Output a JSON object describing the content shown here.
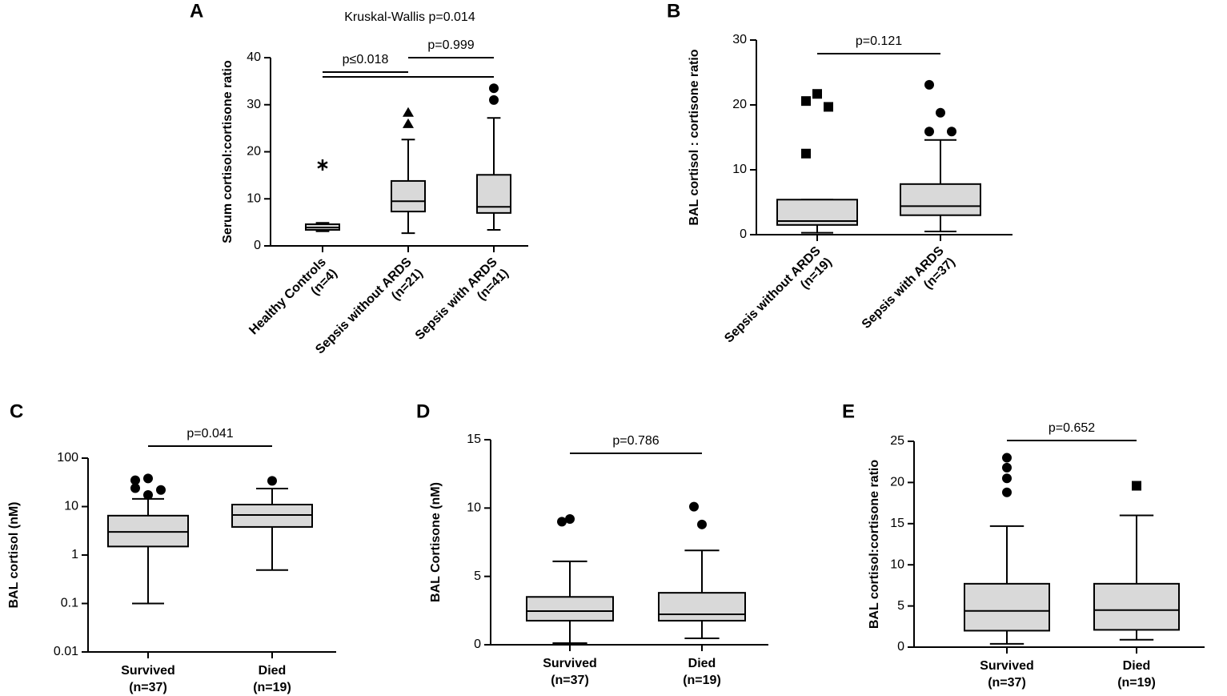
{
  "chart_data": [
    {
      "type": "box",
      "label": "A",
      "title": "Kruskal-Wallis p=0.014",
      "ylabel": "Serum cortisol:cortisone ratio",
      "categories": [
        "Healthy Controls",
        "Sepsis without ARDS",
        "Sepsis with ARDS"
      ],
      "category_notes": [
        "(n=4)",
        "(n=21)",
        "(n=41)"
      ],
      "ylim": [
        0,
        40
      ],
      "yticks": [
        0,
        10,
        20,
        30,
        40
      ],
      "log": false,
      "boxes": [
        {
          "whisker_low": 3.1,
          "q1": 3.4,
          "median": 3.9,
          "q3": 4.6,
          "whisker_high": 4.9,
          "outliers": [
            17.2
          ],
          "marker": "star"
        },
        {
          "whisker_low": 2.7,
          "q1": 7.3,
          "median": 9.5,
          "q3": 13.8,
          "whisker_high": 22.6,
          "outliers": [
            28.3,
            25.9
          ],
          "marker": "triangle"
        },
        {
          "whisker_low": 3.4,
          "q1": 7.0,
          "median": 8.3,
          "q3": 15.1,
          "whisker_high": 27.2,
          "outliers": [
            33.5,
            31.0
          ],
          "marker": "circle"
        }
      ],
      "annotations": [
        {
          "text": "p≤0.018",
          "pairs": [
            [
              0,
              1
            ],
            [
              0,
              2
            ]
          ]
        },
        {
          "text": "p=0.999",
          "pairs": [
            [
              1,
              2
            ]
          ]
        }
      ]
    },
    {
      "type": "box",
      "label": "B",
      "ylabel": "BAL cortisol : cortisone ratio",
      "categories": [
        "Sepsis without ARDS",
        "Sepsis with ARDS"
      ],
      "category_notes": [
        "(n=19)",
        "(n=37)"
      ],
      "ylim": [
        0,
        30
      ],
      "yticks": [
        0,
        10,
        20,
        30
      ],
      "log": false,
      "boxes": [
        {
          "whisker_low": 0.3,
          "q1": 1.5,
          "median": 2.1,
          "q3": 5.4,
          "whisker_high": 5.4,
          "outliers": [
            20.6,
            21.7,
            19.7,
            12.5
          ],
          "marker": "square"
        },
        {
          "whisker_low": 0.5,
          "q1": 3.0,
          "median": 4.4,
          "q3": 7.8,
          "whisker_high": 14.6,
          "outliers": [
            23.1,
            18.8,
            15.9,
            15.9
          ],
          "marker": "circle"
        }
      ],
      "annotations": [
        {
          "text": "p=0.121",
          "pairs": [
            [
              0,
              1
            ]
          ]
        }
      ]
    },
    {
      "type": "box",
      "label": "C",
      "ylabel": "BAL cortisol (nM)",
      "categories": [
        "Survived",
        "Died"
      ],
      "category_notes": [
        "(n=37)",
        "(n=19)"
      ],
      "ylim": [
        0.01,
        100
      ],
      "yticks": [
        0.01,
        0.1,
        1,
        10,
        100
      ],
      "log": true,
      "boxes": [
        {
          "whisker_low": 0.1,
          "q1": 1.5,
          "median": 3.0,
          "q3": 6.5,
          "whisker_high": 14.4,
          "outliers": [
            35,
            38,
            22,
            24,
            17.4
          ],
          "marker": "circle"
        },
        {
          "whisker_low": 0.49,
          "q1": 3.8,
          "median": 6.7,
          "q3": 11,
          "whisker_high": 23.5,
          "outliers": [
            34
          ],
          "marker": "circle"
        }
      ],
      "annotations": [
        {
          "text": "p=0.041",
          "pairs": [
            [
              0,
              1
            ]
          ]
        }
      ]
    },
    {
      "type": "box",
      "label": "D",
      "ylabel": "BAL Cortisone (nM)",
      "categories": [
        "Survived",
        "Died"
      ],
      "category_notes": [
        "(n=37)",
        "(n=19)"
      ],
      "ylim": [
        0,
        15
      ],
      "yticks": [
        0,
        5,
        10,
        15
      ],
      "log": false,
      "boxes": [
        {
          "whisker_low": 0.12,
          "q1": 1.76,
          "median": 2.46,
          "q3": 3.5,
          "whisker_high": 6.1,
          "outliers": [
            9.0,
            9.2
          ],
          "marker": "circle"
        },
        {
          "whisker_low": 0.47,
          "q1": 1.76,
          "median": 2.23,
          "q3": 3.8,
          "whisker_high": 6.9,
          "outliers": [
            10.1,
            8.8
          ],
          "marker": "circle"
        }
      ],
      "annotations": [
        {
          "text": "p=0.786",
          "pairs": [
            [
              0,
              1
            ]
          ]
        }
      ]
    },
    {
      "type": "box",
      "label": "E",
      "ylabel": "BAL cortisol:cortisone ratio",
      "categories": [
        "Survived",
        "Died"
      ],
      "category_notes": [
        "(n=37)",
        "(n=19)"
      ],
      "ylim": [
        0,
        25
      ],
      "yticks": [
        0,
        5,
        10,
        15,
        20,
        25
      ],
      "log": false,
      "boxes": [
        {
          "whisker_low": 0.4,
          "q1": 2.0,
          "median": 4.4,
          "q3": 7.7,
          "whisker_high": 14.7,
          "outliers": [
            23.0,
            21.8,
            20.5,
            18.8
          ],
          "marker": "circle"
        },
        {
          "whisker_low": 0.9,
          "q1": 2.1,
          "median": 4.5,
          "q3": 7.7,
          "whisker_high": 16.0,
          "outliers": [
            19.6
          ],
          "marker": "square"
        }
      ],
      "annotations": [
        {
          "text": "p=0.652",
          "pairs": [
            [
              0,
              1
            ]
          ]
        }
      ]
    }
  ]
}
